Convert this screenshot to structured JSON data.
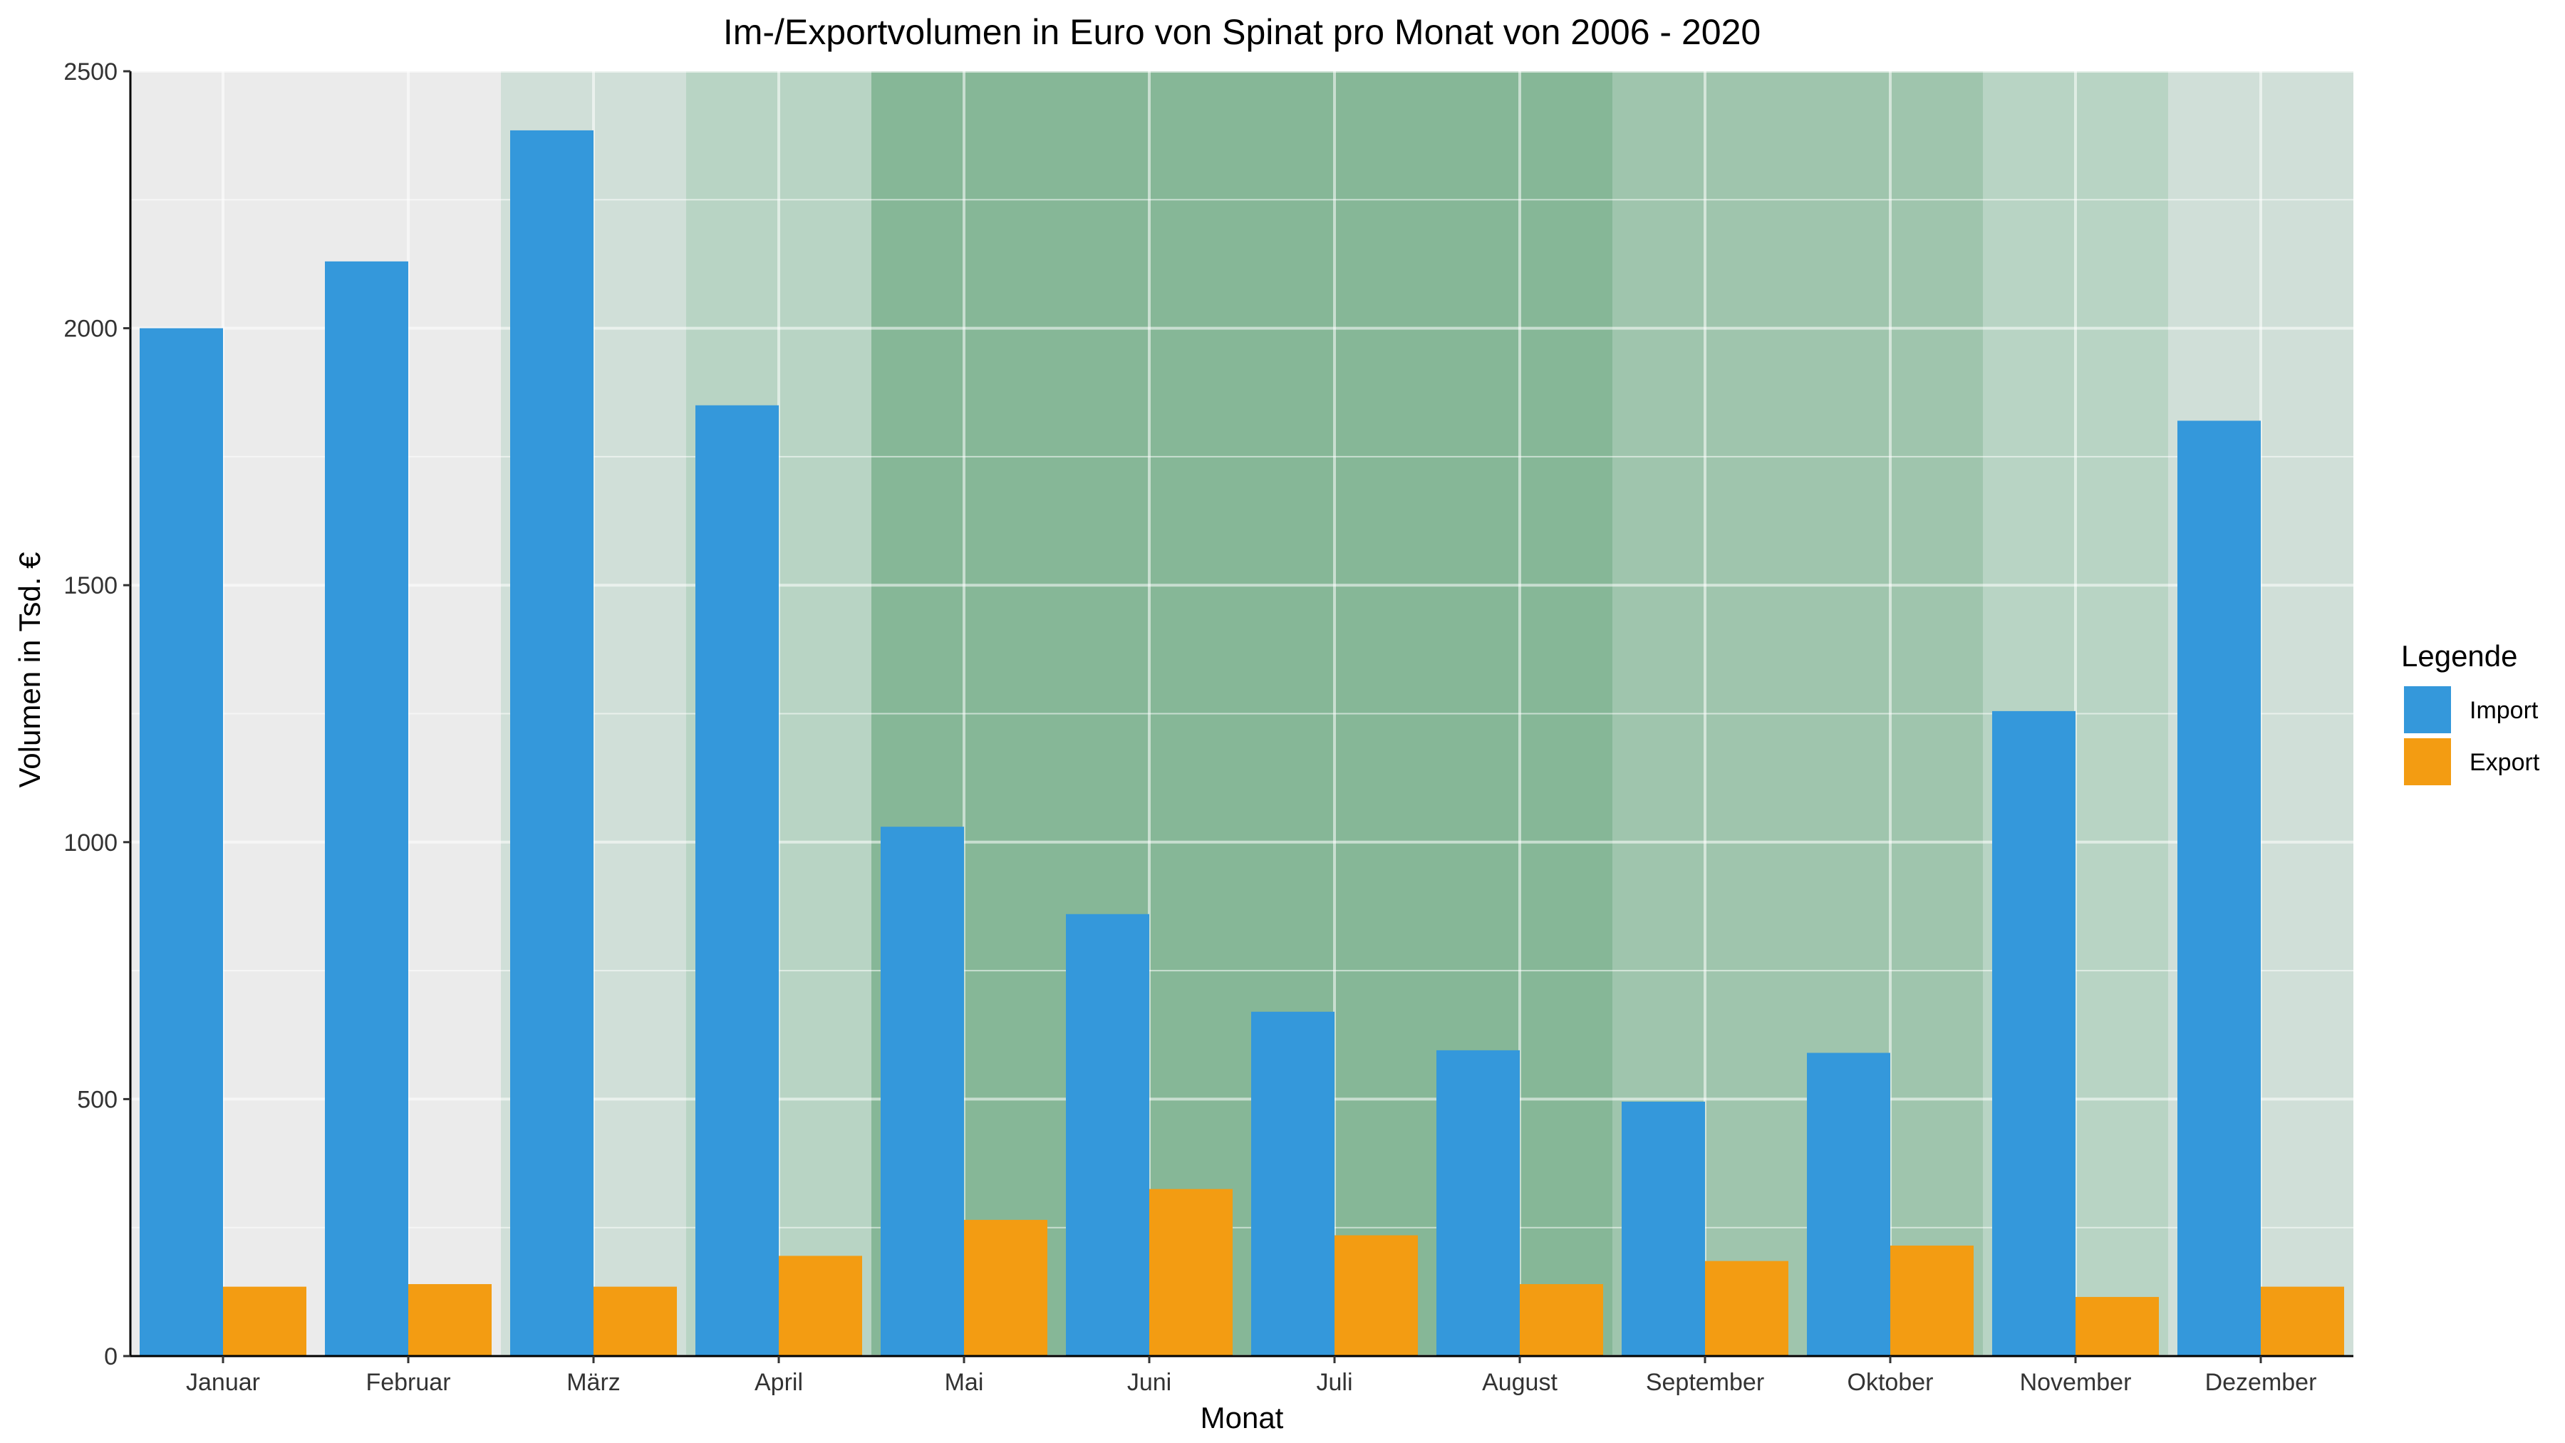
{
  "chart_data": {
    "type": "bar",
    "title": "Im-/Exportvolumen in Euro von Spinat pro Monat von 2006 - 2020",
    "xlabel": "Monat",
    "ylabel": "Volumen in Tsd. €",
    "categories": [
      "Januar",
      "Februar",
      "März",
      "April",
      "Mai",
      "Juni",
      "Juli",
      "August",
      "September",
      "Oktober",
      "November",
      "Dezember"
    ],
    "series": [
      {
        "name": "Import",
        "color": "#3498db",
        "values": [
          2000,
          2130,
          2385,
          1850,
          1030,
          860,
          670,
          595,
          495,
          590,
          1255,
          1820
        ]
      },
      {
        "name": "Export",
        "color": "#f39c12",
        "values": [
          135,
          140,
          135,
          195,
          265,
          325,
          235,
          140,
          185,
          215,
          115,
          135
        ]
      }
    ],
    "ylim": [
      0,
      2500
    ],
    "yticks": [
      0,
      500,
      1000,
      1500,
      2000,
      2500
    ],
    "grid": true,
    "legend": {
      "title": "Legende",
      "position": "right"
    },
    "season_shading": {
      "description_levels": [
        0,
        1,
        2,
        3,
        4
      ],
      "month_levels": [
        0,
        0,
        1,
        2,
        4,
        4,
        4,
        4,
        3,
        3,
        2,
        1
      ],
      "colors": [
        "#ebebeb",
        "#d0dfd8",
        "#b8d4c4",
        "#9fc5ad",
        "#86b797"
      ]
    }
  }
}
